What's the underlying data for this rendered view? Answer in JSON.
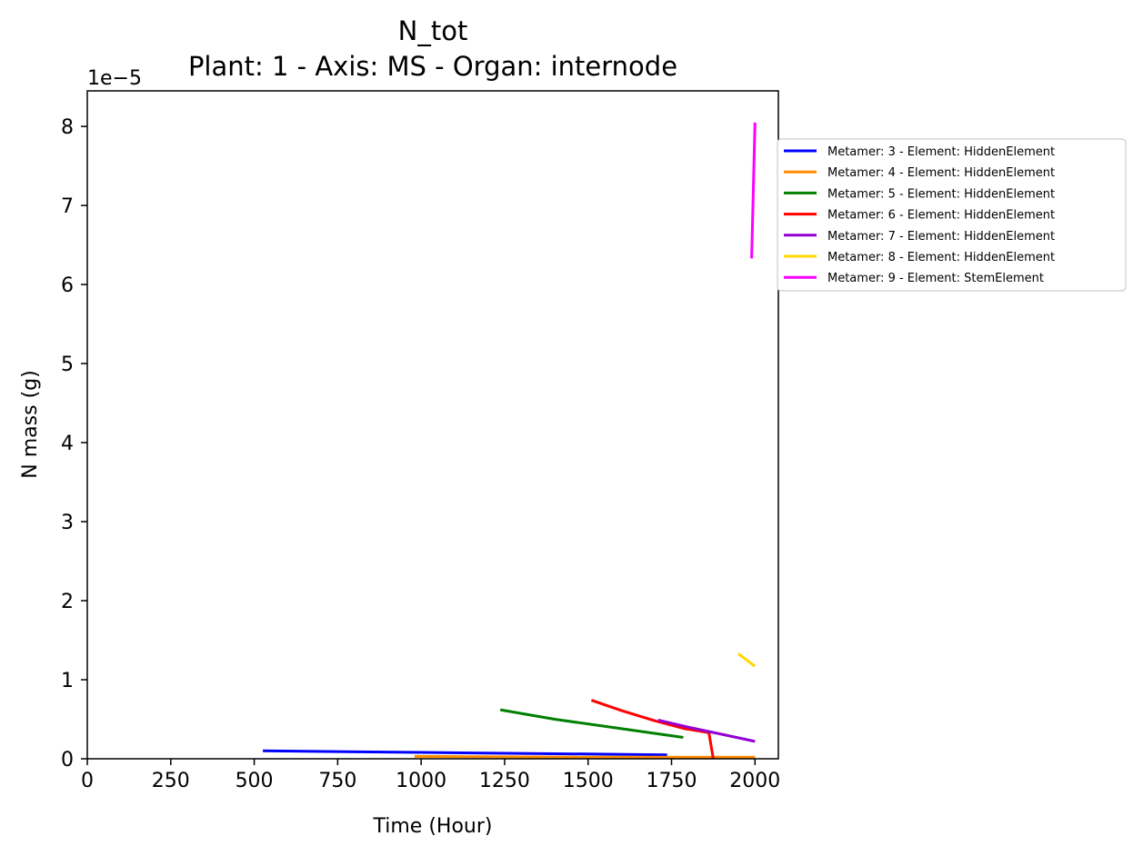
{
  "chart_data": {
    "type": "line",
    "title": "N_tot",
    "subtitle": "Plant: 1 - Axis: MS - Organ: internode",
    "xlabel": "Time (Hour)",
    "ylabel": "N mass (g)",
    "y_offset_label": "1e−5",
    "xlim": [
      0,
      2070
    ],
    "ylim": [
      0,
      8.45
    ],
    "x_ticks": [
      0,
      250,
      500,
      750,
      1000,
      1250,
      1500,
      1750,
      2000
    ],
    "y_ticks": [
      0,
      1,
      2,
      3,
      4,
      5,
      6,
      7,
      8
    ],
    "grid": false,
    "legend_position": "outside-right",
    "series": [
      {
        "name": "Metamer: 3 - Element: HiddenElement",
        "color": "#0000ff",
        "x": [
          526,
          1000,
          1500,
          1737
        ],
        "y": [
          0.1,
          0.08,
          0.06,
          0.05
        ]
      },
      {
        "name": "Metamer: 4 - Element: HiddenElement",
        "color": "#ff8c00",
        "x": [
          980,
          1500,
          2000
        ],
        "y": [
          0.03,
          0.02,
          0.02
        ]
      },
      {
        "name": "Metamer: 5 - Element: HiddenElement",
        "color": "#008000",
        "x": [
          1237,
          1400,
          1600,
          1785
        ],
        "y": [
          0.62,
          0.5,
          0.38,
          0.27
        ]
      },
      {
        "name": "Metamer: 6 - Element: HiddenElement",
        "color": "#ff0000",
        "x": [
          1510,
          1600,
          1700,
          1790,
          1862,
          1875
        ],
        "y": [
          0.74,
          0.61,
          0.48,
          0.38,
          0.33,
          0.0
        ]
      },
      {
        "name": "Metamer: 7 - Element: HiddenElement",
        "color": "#9400d3",
        "x": [
          1710,
          1800,
          1900,
          2000
        ],
        "y": [
          0.49,
          0.4,
          0.31,
          0.22
        ]
      },
      {
        "name": "Metamer: 8 - Element: HiddenElement",
        "color": "#ffd700",
        "x": [
          1950,
          1975,
          2000
        ],
        "y": [
          1.33,
          1.25,
          1.17
        ]
      },
      {
        "name": "Metamer: 9 - Element: StemElement",
        "color": "#ff00ff",
        "x": [
          1990,
          2000
        ],
        "y": [
          6.33,
          8.05
        ]
      }
    ]
  }
}
